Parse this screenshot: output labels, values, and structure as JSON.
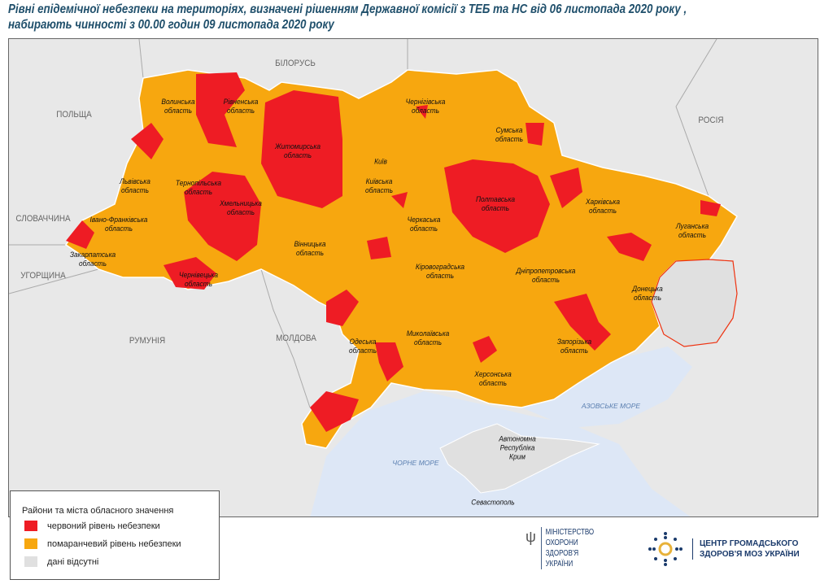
{
  "title": {
    "line1": "Рівні епідемічної небезпеки на територіях, визначені рішенням Державної комісії з ТЕБ та НС від 06 листопада 2020 року ,",
    "line2": "набирають чинності з 00.00 годин 09 листопада 2020 року"
  },
  "colors": {
    "red": "#ee1c24",
    "orange": "#f7a70f",
    "no_data": "#e0e0e0",
    "land": "#e8e8e8",
    "sea": "#dde7f6"
  },
  "countries": [
    "БІЛОРУСЬ",
    "ПОЛЬЩА",
    "РОСІЯ",
    "СЛОВАЧЧИНА",
    "УГОРЩИНА",
    "РУМУНІЯ",
    "МОЛДОВА"
  ],
  "seas": [
    "АЗОВСЬКЕ МОРЕ",
    "ЧОРНЕ МОРЕ"
  ],
  "crimea": "Автономна Республіка Крим",
  "sevastopol": "Севастополь",
  "kyiv": "Київ",
  "oblasts": [
    "Волинська область",
    "Рівненська область",
    "Житомирська область",
    "Чернігівська область",
    "Сумська область",
    "Київська область",
    "Полтавська область",
    "Харківська область",
    "Луганська область",
    "Львівська область",
    "Тернопільська область",
    "Хмельницька область",
    "Івано-Франківська область",
    "Закарпатська область",
    "Вінницька область",
    "Черкаська область",
    "Кіровоградська область",
    "Дніпропетровська область",
    "Чернівецька область",
    "Донецька область",
    "Одеська область",
    "Миколаївська область",
    "Запорізька область",
    "Херсонська область"
  ],
  "legend": {
    "title": "Райони та міста обласного значення",
    "items": [
      {
        "label": "червоний рівень небезпеки",
        "color": "#ee1c24"
      },
      {
        "label": "помаранчевий рівень небезпеки",
        "color": "#f7a70f"
      },
      {
        "label": "дані відсутні",
        "color": "#e0e0e0"
      }
    ]
  },
  "logos": {
    "moz": [
      "МІНІСТЕРСТВО",
      "ОХОРОНИ",
      "ЗДОРОВ'Я",
      "УКРАЇНИ"
    ],
    "cph": [
      "ЦЕНТР ГРОМАДСЬКОГО",
      "ЗДОРОВ'Я МОЗ УКРАЇНИ"
    ]
  }
}
